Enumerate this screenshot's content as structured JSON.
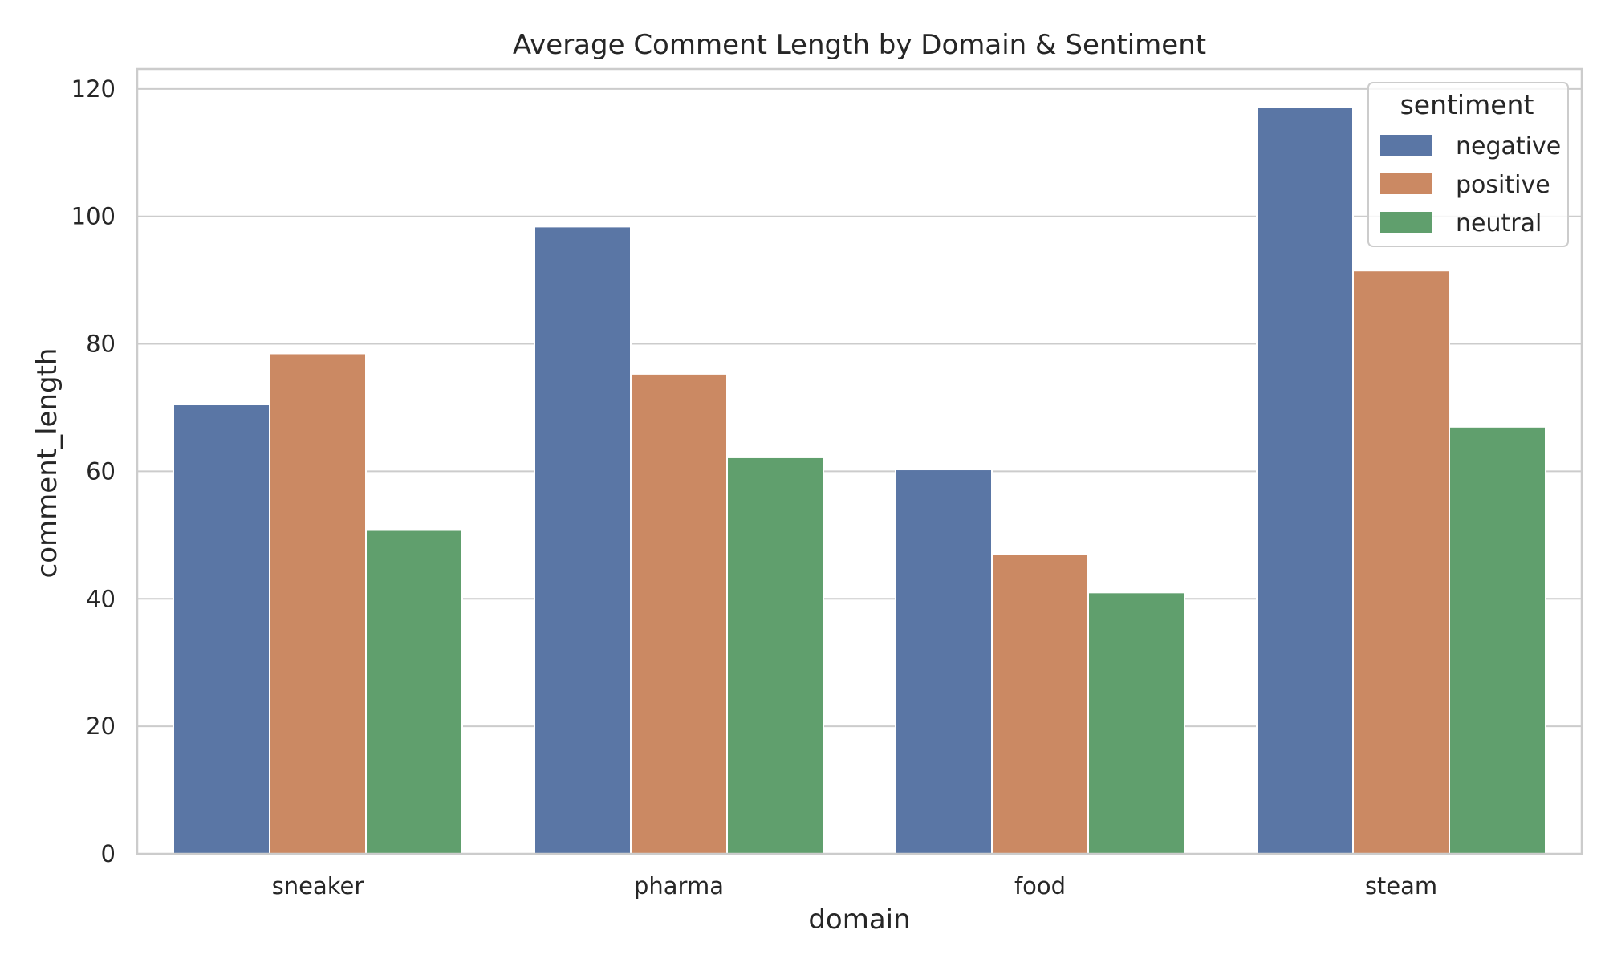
{
  "chart_data": {
    "type": "bar",
    "title": "Average Comment Length by Domain & Sentiment",
    "xlabel": "domain",
    "ylabel": "comment_length",
    "categories": [
      "sneaker",
      "pharma",
      "food",
      "steam"
    ],
    "ylim": [
      0,
      123
    ],
    "yticks": [
      0,
      20,
      40,
      60,
      80,
      100,
      120
    ],
    "grid": true,
    "legend": {
      "title": "sentiment",
      "placement": "top-right"
    },
    "series": [
      {
        "name": "negative",
        "color": "#5a76a5",
        "values": [
          70.5,
          98.4,
          60.3,
          117.1
        ]
      },
      {
        "name": "positive",
        "color": "#cb8963",
        "values": [
          78.5,
          75.3,
          47.0,
          91.5
        ]
      },
      {
        "name": "neutral",
        "color": "#609f6d",
        "values": [
          50.8,
          62.2,
          41.0,
          67.0
        ]
      }
    ]
  }
}
